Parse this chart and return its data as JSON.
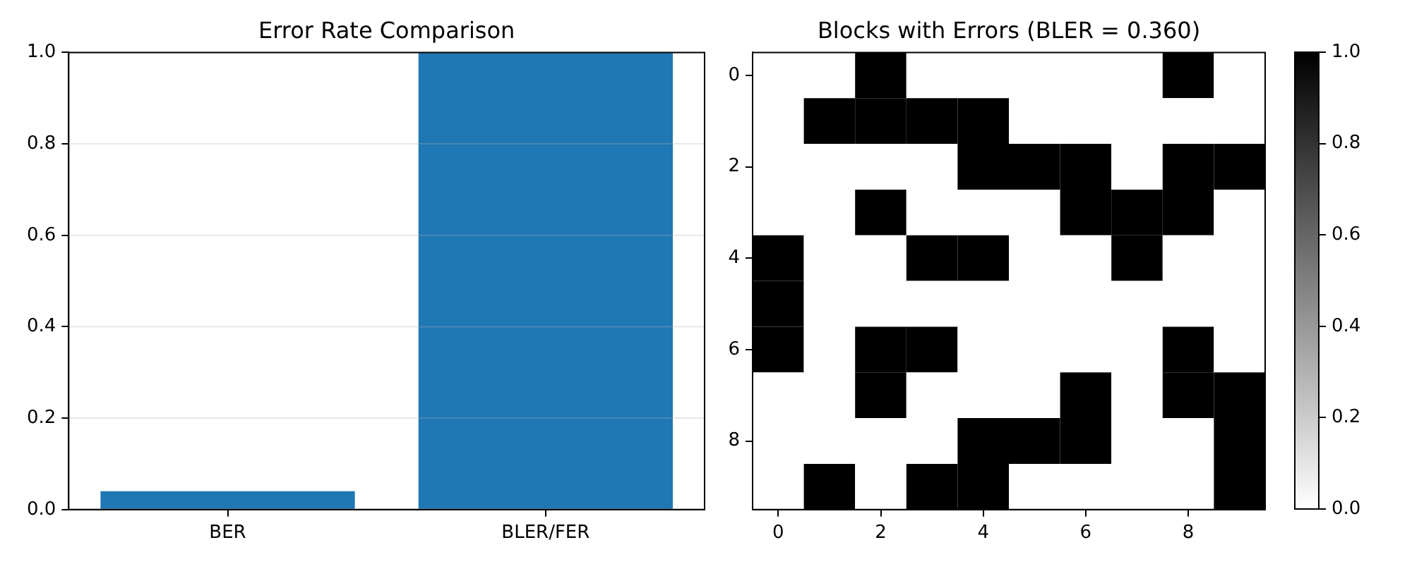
{
  "chart_data": [
    {
      "type": "bar",
      "title": "Error Rate Comparison",
      "categories": [
        "BER",
        "BLER/FER"
      ],
      "values": [
        0.04,
        1.0
      ],
      "color": "#1f77b4",
      "ylim": [
        0,
        1
      ],
      "yticks": [
        {
          "value": 0,
          "label": "0.0"
        },
        {
          "value": 0.2,
          "label": "0.2"
        },
        {
          "value": 0.4,
          "label": "0.4"
        },
        {
          "value": 0.6,
          "label": "0.6"
        },
        {
          "value": 0.8,
          "label": "0.8"
        },
        {
          "value": 1,
          "label": "1.0"
        }
      ],
      "grid": "y"
    },
    {
      "type": "heatmap",
      "title": "Blocks with Errors (BLER = 0.360)",
      "categories": [
        "0",
        null,
        "2",
        null,
        "4",
        null,
        "6",
        null,
        "8",
        null
      ],
      "y_categories": [
        "0",
        null,
        "2",
        null,
        "4",
        null,
        "6",
        null,
        "8",
        null
      ],
      "cells": [
        [
          0,
          0,
          1,
          0,
          0,
          0,
          0,
          0,
          1,
          0
        ],
        [
          0,
          1,
          1,
          1,
          1,
          0,
          0,
          0,
          0,
          0
        ],
        [
          0,
          0,
          0,
          0,
          1,
          1,
          1,
          0,
          1,
          1
        ],
        [
          0,
          0,
          1,
          0,
          0,
          0,
          1,
          1,
          1,
          0
        ],
        [
          1,
          0,
          0,
          1,
          1,
          0,
          0,
          1,
          0,
          0
        ],
        [
          1,
          0,
          0,
          0,
          0,
          0,
          0,
          0,
          0,
          0
        ],
        [
          1,
          0,
          1,
          1,
          0,
          0,
          0,
          0,
          1,
          0
        ],
        [
          0,
          0,
          1,
          0,
          0,
          0,
          1,
          0,
          1,
          1
        ],
        [
          0,
          0,
          0,
          0,
          1,
          1,
          1,
          0,
          0,
          1
        ],
        [
          0,
          1,
          0,
          1,
          1,
          0,
          0,
          0,
          0,
          1
        ]
      ],
      "color": "#000000",
      "clim": [
        0,
        1
      ],
      "cticks": [
        {
          "value": 0,
          "label": "0.0"
        },
        {
          "value": 0.2,
          "label": "0.2"
        },
        {
          "value": 0.4,
          "label": "0.4"
        },
        {
          "value": 0.6,
          "label": "0.6"
        },
        {
          "value": 0.8,
          "label": "0.8"
        },
        {
          "value": 1,
          "label": "1.0"
        }
      ]
    }
  ]
}
